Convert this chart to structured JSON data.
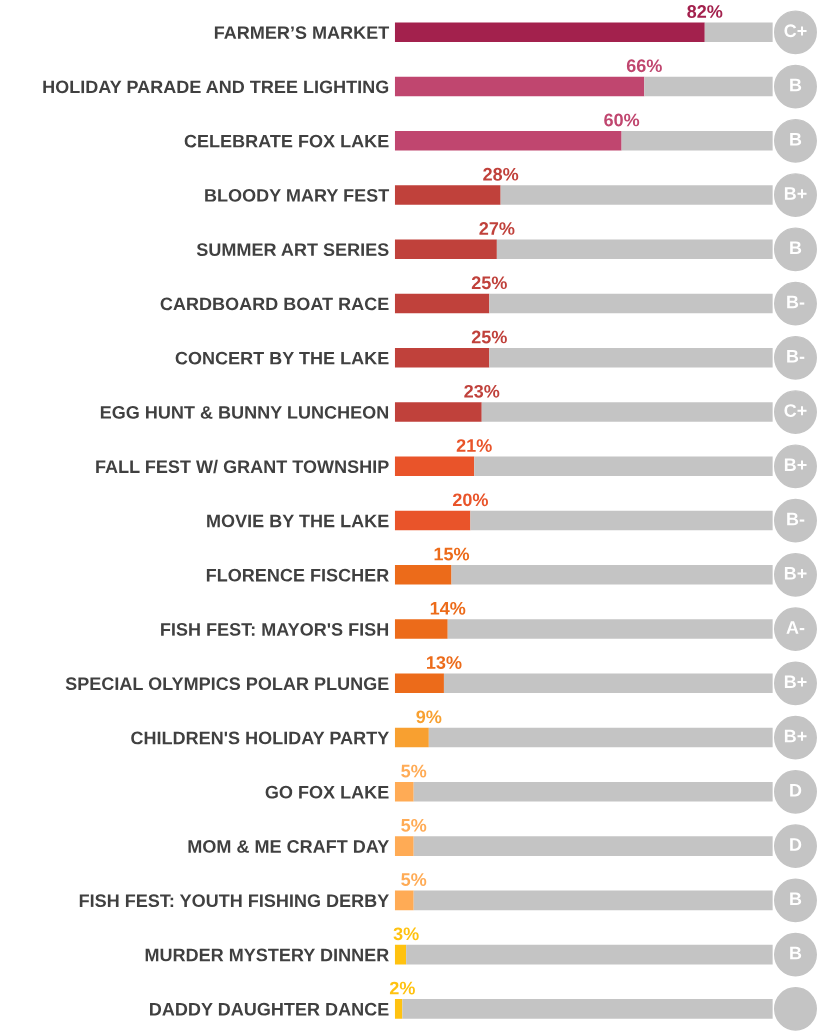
{
  "chart_data": {
    "type": "bar",
    "orientation": "horizontal",
    "stacked": true,
    "categories": [
      "FARMER’S MARKET",
      "HOLIDAY PARADE AND TREE LIGHTING",
      "CELEBRATE FOX LAKE",
      "BLOODY MARY FEST",
      "SUMMER ART SERIES",
      "CARDBOARD BOAT RACE",
      "CONCERT BY THE LAKE",
      "EGG HUNT & BUNNY LUNCHEON",
      "FALL FEST W/ GRANT TOWNSHIP",
      "MOVIE BY THE LAKE",
      "FLORENCE FISCHER",
      "FISH FEST: MAYOR'S FISH",
      "SPECIAL OLYMPICS POLAR PLUNGE",
      "CHILDREN'S HOLIDAY PARTY",
      "GO FOX LAKE",
      "MOM & ME CRAFT DAY",
      "FISH FEST: YOUTH FISHING DERBY",
      "MURDER MYSTERY DINNER",
      "DADDY DAUGHTER DANCE"
    ],
    "series": [
      {
        "values": [
          82,
          66,
          60,
          28,
          27,
          25,
          25,
          23,
          21,
          20,
          15,
          14,
          13,
          9,
          5,
          5,
          5,
          3,
          2
        ],
        "colors": [
          "#a3214d",
          "#c0466f",
          "#c0466f",
          "#c0413b",
          "#c0413b",
          "#c0413b",
          "#c0413b",
          "#c0413b",
          "#e9542a",
          "#e9542a",
          "#ec6b1a",
          "#ec6b1a",
          "#ec6b1a",
          "#f8a030",
          "#ffab55",
          "#ffab55",
          "#ffab55",
          "#ffc210",
          "#ffc210"
        ],
        "value_labels": [
          "82%",
          "66%",
          "60%",
          "28%",
          "27%",
          "25%",
          "25%",
          "23%",
          "21%",
          "20%",
          "15%",
          "14%",
          "13%",
          "9%",
          "5%",
          "5%",
          "5%",
          "3%",
          "2%"
        ]
      },
      {
        "color": "#c4c4c4",
        "values": [
          18,
          34,
          40,
          72,
          73,
          75,
          75,
          77,
          79,
          80,
          85,
          86,
          87,
          91,
          95,
          95,
          95,
          97,
          98
        ]
      }
    ],
    "annotations": [
      {
        "text": "C+",
        "y": "FARMER’S MARKET"
      },
      {
        "text": "B",
        "y": "HOLIDAY PARADE AND TREE LIGHTING"
      },
      {
        "text": "B",
        "y": "CELEBRATE FOX LAKE"
      },
      {
        "text": "B+",
        "y": "BLOODY MARY FEST"
      },
      {
        "text": "B",
        "y": "SUMMER ART SERIES"
      },
      {
        "text": "B-",
        "y": "CARDBOARD BOAT RACE"
      },
      {
        "text": "B-",
        "y": "CONCERT BY THE LAKE"
      },
      {
        "text": "C+",
        "y": "EGG HUNT & BUNNY LUNCHEON"
      },
      {
        "text": "B+",
        "y": "FALL FEST W/ GRANT TOWNSHIP"
      },
      {
        "text": "B-",
        "y": "MOVIE BY THE LAKE"
      },
      {
        "text": "B+",
        "y": "FLORENCE FISCHER"
      },
      {
        "text": "A-",
        "y": "FISH FEST: MAYOR'S FISH"
      },
      {
        "text": "B+",
        "y": "SPECIAL OLYMPICS POLAR PLUNGE"
      },
      {
        "text": "B+",
        "y": "CHILDREN'S HOLIDAY PARTY"
      },
      {
        "text": "D",
        "y": "GO FOX LAKE"
      },
      {
        "text": "D",
        "y": "MOM & ME CRAFT DAY"
      },
      {
        "text": "B",
        "y": "FISH FEST: YOUTH FISHING DERBY"
      },
      {
        "text": "B",
        "y": "MURDER MYSTERY DINNER"
      }
    ],
    "xlim": [
      0,
      100
    ],
    "tick_labels": "y",
    "grid": false,
    "legend": false
  }
}
